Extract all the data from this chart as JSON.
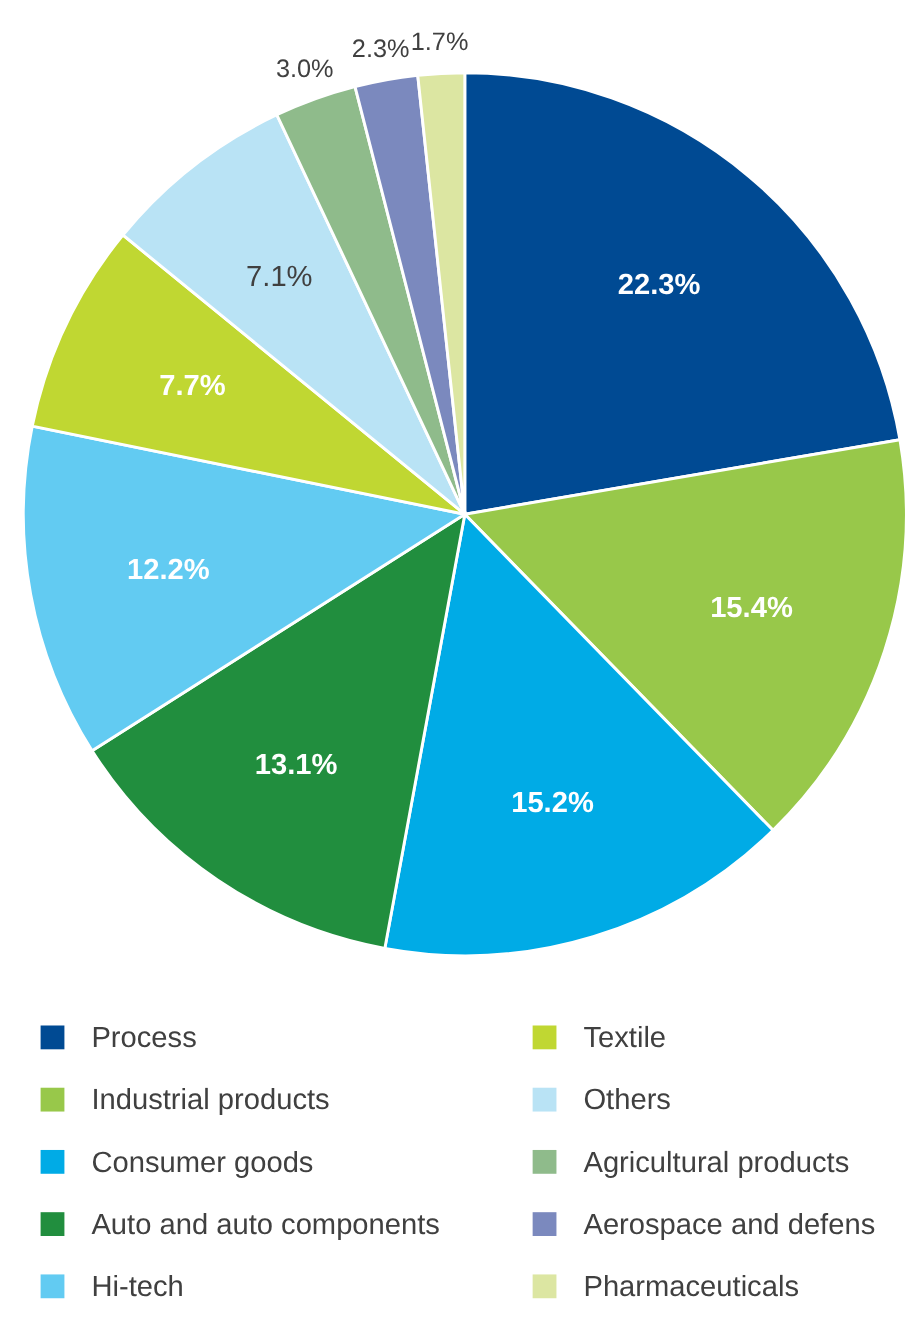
{
  "chart_data": {
    "type": "pie",
    "categories": [
      "Process",
      "Industrial products",
      "Consumer goods",
      "Auto and auto components",
      "Hi-tech",
      "Textile",
      "Others",
      "Agricultural products",
      "Aerospace and defens",
      "Pharmaceuticals"
    ],
    "values": [
      22.3,
      15.4,
      15.2,
      13.1,
      12.2,
      7.7,
      7.1,
      3.0,
      2.3,
      1.7
    ],
    "colors": [
      "#004a93",
      "#98c84a",
      "#00abe6",
      "#218e3e",
      "#62cbf2",
      "#c0d732",
      "#b9e3f5",
      "#8fbb8b",
      "#7b89be",
      "#dce6a2"
    ],
    "value_labels": [
      "22.3%",
      "15.4%",
      "15.2%",
      "13.1%",
      "12.2%",
      "7.7%",
      "7.1%",
      "3.0%",
      "2.3%",
      "1.7%"
    ],
    "legend": "bottom"
  }
}
